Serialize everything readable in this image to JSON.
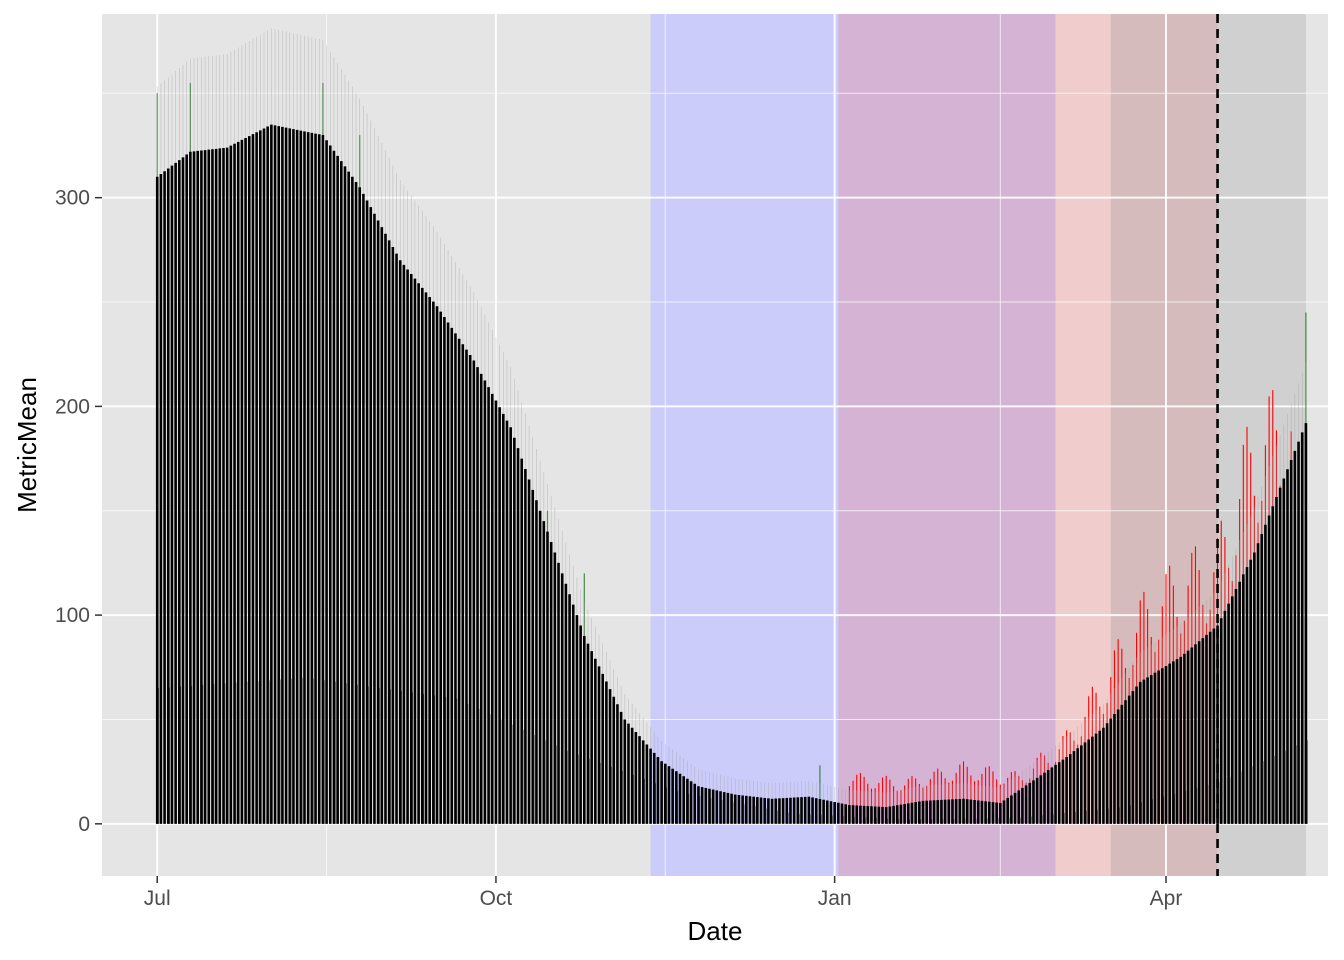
{
  "chart_data": {
    "type": "bar",
    "xlabel": "Date",
    "ylabel": "MetricMean",
    "x_ticks": [
      "Jul",
      "Oct",
      "Jan",
      "Apr"
    ],
    "x_tick_dates": [
      "2020-07-01",
      "2020-10-01",
      "2021-01-01",
      "2021-04-01"
    ],
    "y_ticks": [
      0,
      100,
      200,
      300
    ],
    "xlim": [
      "2020-06-16",
      "2021-05-15"
    ],
    "ylim": [
      -25,
      388
    ],
    "grid": true,
    "shaded_periods": [
      {
        "start": "2020-11-12",
        "end": "2021-01-02",
        "color": "#c8c8ff"
      },
      {
        "start": "2021-01-02",
        "end": "2021-03-02",
        "color": "#d2aad2"
      },
      {
        "start": "2021-03-02",
        "end": "2021-03-17",
        "color": "#f2c8c8"
      },
      {
        "start": "2021-03-17",
        "end": "2021-04-15",
        "color": "#d2b4b4"
      },
      {
        "start": "2021-04-15",
        "end": "2021-05-09",
        "color": "#cccccc"
      }
    ],
    "reference_line": {
      "date": "2021-04-15",
      "style": "dashed"
    },
    "series": [
      {
        "color": "#000000",
        "x": [
          "2020-07-01",
          "2020-07-10",
          "2020-07-20",
          "2020-08-01",
          "2020-08-15",
          "2020-08-25",
          "2020-09-05",
          "2020-09-15",
          "2020-09-25",
          "2020-10-05",
          "2020-10-15",
          "2020-10-25",
          "2020-11-05",
          "2020-11-15",
          "2020-11-25",
          "2020-12-05",
          "2020-12-15",
          "2020-12-25",
          "2021-01-05",
          "2021-01-15",
          "2021-01-25",
          "2021-02-05",
          "2021-02-15",
          "2021-02-25",
          "2021-03-05",
          "2021-03-15",
          "2021-03-25",
          "2021-04-05",
          "2021-04-15",
          "2021-04-25",
          "2021-05-09"
        ],
        "values": [
          310,
          322,
          324,
          335,
          330,
          305,
          270,
          248,
          222,
          190,
          140,
          90,
          50,
          30,
          18,
          14,
          12,
          13,
          9,
          8,
          11,
          12,
          10,
          22,
          32,
          46,
          68,
          80,
          95,
          130,
          192
        ]
      },
      {
        "color": "#000000",
        "x": [
          "2020-07-01",
          "2020-08-10",
          "2020-09-20",
          "2020-10-20",
          "2020-11-20",
          "2020-12-20",
          "2021-01-20",
          "2021-02-20",
          "2021-03-20",
          "2021-04-15",
          "2021-05-09"
        ],
        "values": [
          65,
          70,
          60,
          35,
          15,
          5,
          2,
          3,
          8,
          20,
          40
        ]
      },
      {
        "color": "#ff0000",
        "x": [
          "2021-01-05",
          "2021-01-20",
          "2021-02-05",
          "2021-02-20",
          "2021-03-05",
          "2021-03-15",
          "2021-03-25",
          "2021-04-05",
          "2021-04-15",
          "2021-04-25",
          "2021-05-05"
        ],
        "values": [
          25,
          22,
          30,
          25,
          45,
          75,
          110,
          130,
          140,
          205,
          215
        ]
      },
      {
        "color": "#006400",
        "x": [
          "2020-07-01",
          "2020-07-10",
          "2020-08-15",
          "2020-08-25",
          "2020-10-15",
          "2020-10-25",
          "2020-12-28",
          "2021-05-09"
        ],
        "values": [
          350,
          355,
          355,
          330,
          150,
          120,
          28,
          245
        ]
      }
    ]
  }
}
